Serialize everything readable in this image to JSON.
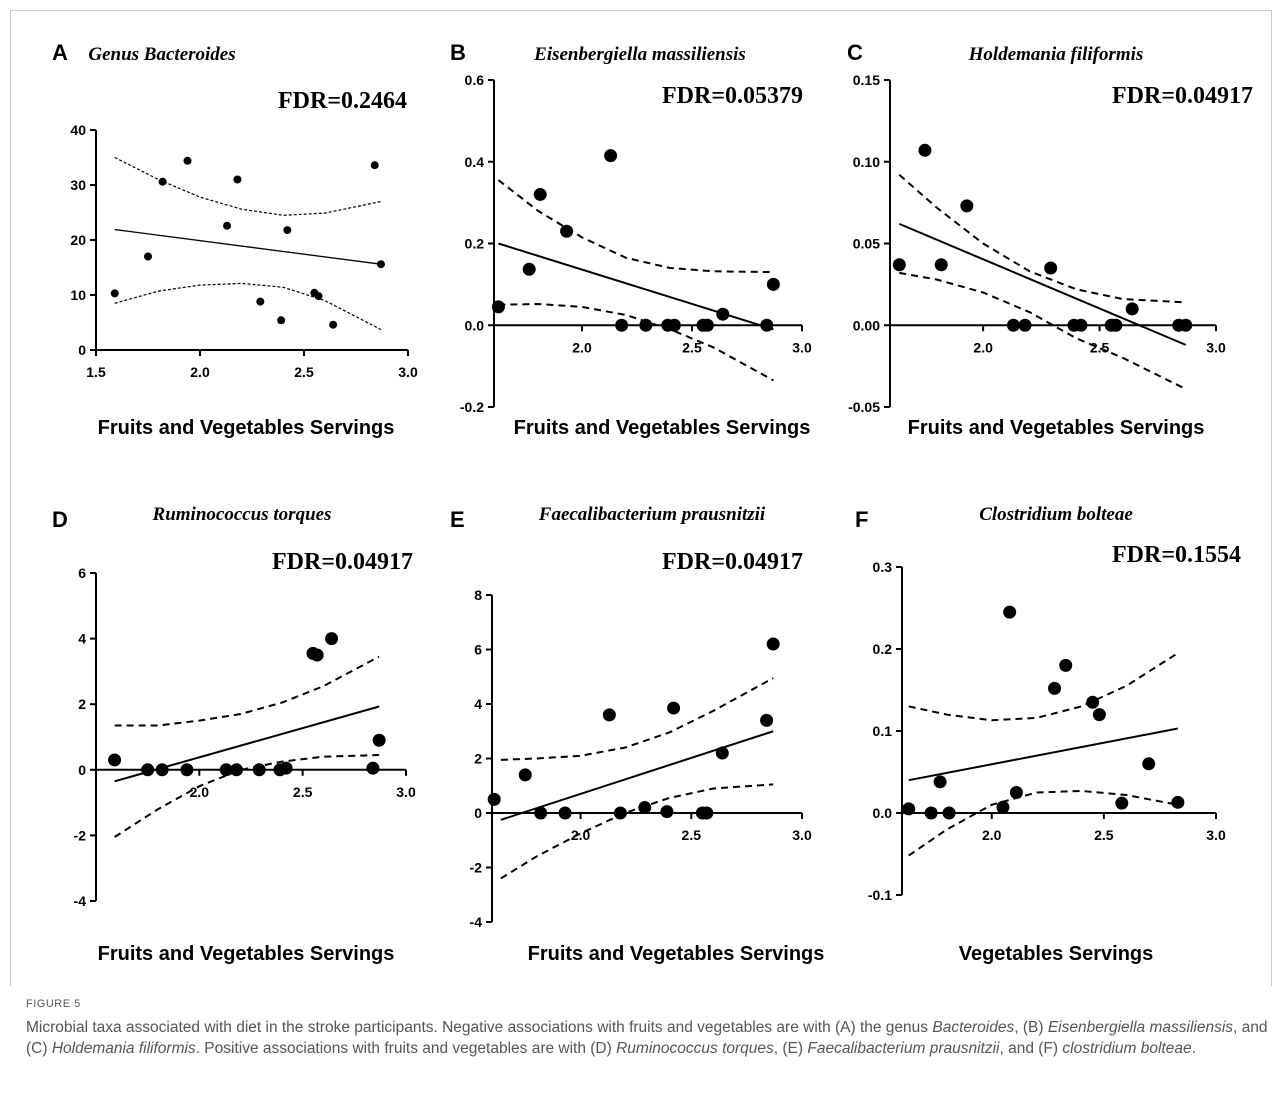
{
  "figure": {
    "label": "FIGURE 5",
    "caption_parts": [
      {
        "t": "Microbial taxa associated with diet in the stroke participants. Negative associations with fruits and vegetables are with (A) the genus ",
        "i": false
      },
      {
        "t": "Bacteroides",
        "i": true
      },
      {
        "t": ", (B) ",
        "i": false
      },
      {
        "t": "Eisenbergiella massiliensis",
        "i": true
      },
      {
        "t": ", and (C) ",
        "i": false
      },
      {
        "t": "Holdemania filiformis",
        "i": true
      },
      {
        "t": ". Positive associations with fruits and vegetables are with (D) ",
        "i": false
      },
      {
        "t": "Ruminococcus torques",
        "i": true
      },
      {
        "t": ", (E) ",
        "i": false
      },
      {
        "t": "Faecalibacterium prausnitzii",
        "i": true
      },
      {
        "t": ", and (F) ",
        "i": false
      },
      {
        "t": "clostridium bolteae",
        "i": true
      },
      {
        "t": ".",
        "i": false
      }
    ]
  },
  "chart_data": [
    {
      "panel": "A",
      "type": "scatter",
      "title": "Genus Bacteroides",
      "fdr": "FDR=0.2464",
      "xlabel": "Fruits and Vegetables Servings",
      "ylabel": "",
      "xlim": [
        1.5,
        3.0
      ],
      "ylim": [
        0,
        40
      ],
      "xticks": [
        "1.5",
        "2.0",
        "2.5",
        "3.0"
      ],
      "yticks": [
        "0",
        "10",
        "20",
        "30",
        "40"
      ],
      "axis_style": "box",
      "point_size": "small",
      "band_style": "dotted",
      "points": [
        [
          1.59,
          10.3
        ],
        [
          1.75,
          17.0
        ],
        [
          1.82,
          30.6
        ],
        [
          1.94,
          34.4
        ],
        [
          2.13,
          22.6
        ],
        [
          2.18,
          31.0
        ],
        [
          2.29,
          8.8
        ],
        [
          2.39,
          5.4
        ],
        [
          2.42,
          21.8
        ],
        [
          2.55,
          10.4
        ],
        [
          2.57,
          9.8
        ],
        [
          2.64,
          4.6
        ],
        [
          2.84,
          33.6
        ],
        [
          2.87,
          15.6
        ]
      ],
      "fit": [
        [
          1.59,
          21.9
        ],
        [
          2.87,
          15.6
        ]
      ],
      "upper": [
        [
          1.59,
          35.0
        ],
        [
          1.8,
          31.0
        ],
        [
          2.0,
          27.8
        ],
        [
          2.2,
          25.6
        ],
        [
          2.4,
          24.5
        ],
        [
          2.6,
          24.9
        ],
        [
          2.87,
          27.0
        ]
      ],
      "lower": [
        [
          1.59,
          8.5
        ],
        [
          1.8,
          10.7
        ],
        [
          2.0,
          11.8
        ],
        [
          2.2,
          12.1
        ],
        [
          2.4,
          11.4
        ],
        [
          2.6,
          9.0
        ],
        [
          2.87,
          3.7
        ]
      ]
    },
    {
      "panel": "B",
      "type": "scatter",
      "title": "Eisenbergiella massiliensis",
      "fdr": "FDR=0.05379",
      "xlabel": "Fruits and Vegetables Servings",
      "ylabel": "",
      "xlim": [
        1.6,
        3.0
      ],
      "ylim": [
        -0.2,
        0.6
      ],
      "xticks": [
        "2.0",
        "2.5",
        "3.0"
      ],
      "yticks": [
        "-0.2",
        "0.0",
        "0.2",
        "0.4",
        "0.6"
      ],
      "axis_style": "zero",
      "point_size": "large",
      "band_style": "dashed",
      "points": [
        [
          1.62,
          0.045
        ],
        [
          1.76,
          0.137
        ],
        [
          1.81,
          0.32
        ],
        [
          1.93,
          0.23
        ],
        [
          2.13,
          0.415
        ],
        [
          2.18,
          0.0
        ],
        [
          2.29,
          0.0
        ],
        [
          2.39,
          0.0
        ],
        [
          2.42,
          0.0
        ],
        [
          2.55,
          0.0
        ],
        [
          2.57,
          0.0
        ],
        [
          2.64,
          0.027
        ],
        [
          2.84,
          0.0
        ],
        [
          2.87,
          0.1
        ]
      ],
      "fit": [
        [
          1.62,
          0.2
        ],
        [
          2.87,
          -0.01
        ]
      ],
      "upper": [
        [
          1.62,
          0.355
        ],
        [
          1.8,
          0.28
        ],
        [
          2.0,
          0.215
        ],
        [
          2.2,
          0.165
        ],
        [
          2.4,
          0.14
        ],
        [
          2.6,
          0.132
        ],
        [
          2.87,
          0.13
        ]
      ],
      "lower": [
        [
          1.62,
          0.05
        ],
        [
          1.8,
          0.052
        ],
        [
          2.0,
          0.045
        ],
        [
          2.2,
          0.025
        ],
        [
          2.4,
          -0.01
        ],
        [
          2.6,
          -0.055
        ],
        [
          2.87,
          -0.135
        ]
      ]
    },
    {
      "panel": "C",
      "type": "scatter",
      "title": "Holdemania filiformis",
      "fdr": "FDR=0.04917",
      "xlabel": "Fruits and Vegetables Servings",
      "ylabel": "",
      "xlim": [
        1.6,
        3.0
      ],
      "ylim": [
        -0.05,
        0.15
      ],
      "xticks": [
        "2.0",
        "2.5",
        "3.0"
      ],
      "yticks": [
        "-0.05",
        "0.00",
        "0.05",
        "0.10",
        "0.15"
      ],
      "axis_style": "zero",
      "point_size": "large",
      "band_style": "dashed",
      "points": [
        [
          1.64,
          0.037
        ],
        [
          1.75,
          0.107
        ],
        [
          1.82,
          0.037
        ],
        [
          1.93,
          0.073
        ],
        [
          2.13,
          0.0
        ],
        [
          2.18,
          0.0
        ],
        [
          2.29,
          0.035
        ],
        [
          2.39,
          0.0
        ],
        [
          2.42,
          0.0
        ],
        [
          2.55,
          0.0
        ],
        [
          2.57,
          0.0
        ],
        [
          2.64,
          0.01
        ],
        [
          2.84,
          0.0
        ],
        [
          2.87,
          0.0
        ]
      ],
      "fit": [
        [
          1.64,
          0.062
        ],
        [
          2.87,
          -0.012
        ]
      ],
      "upper": [
        [
          1.64,
          0.092
        ],
        [
          1.8,
          0.072
        ],
        [
          2.0,
          0.05
        ],
        [
          2.2,
          0.033
        ],
        [
          2.4,
          0.022
        ],
        [
          2.6,
          0.016
        ],
        [
          2.87,
          0.014
        ]
      ],
      "lower": [
        [
          1.64,
          0.032
        ],
        [
          1.8,
          0.028
        ],
        [
          2.0,
          0.02
        ],
        [
          2.2,
          0.008
        ],
        [
          2.4,
          -0.008
        ],
        [
          2.6,
          -0.02
        ],
        [
          2.87,
          -0.039
        ]
      ]
    },
    {
      "panel": "D",
      "type": "scatter",
      "title": "Ruminococcus torques",
      "fdr": "FDR=0.04917",
      "xlabel": "Fruits and Vegetables Servings",
      "ylabel": "",
      "xlim": [
        1.5,
        3.0
      ],
      "ylim": [
        -4,
        6
      ],
      "xticks": [
        "2.0",
        "2.5",
        "3.0"
      ],
      "yticks": [
        "-4",
        "-2",
        "0",
        "2",
        "4",
        "6"
      ],
      "axis_style": "zero",
      "point_size": "large",
      "band_style": "dashed",
      "points": [
        [
          1.59,
          0.3
        ],
        [
          1.75,
          0.0
        ],
        [
          1.82,
          0.0
        ],
        [
          1.94,
          0.0
        ],
        [
          2.13,
          0.0
        ],
        [
          2.18,
          0.0
        ],
        [
          2.29,
          0.0
        ],
        [
          2.39,
          0.0
        ],
        [
          2.42,
          0.05
        ],
        [
          2.55,
          3.55
        ],
        [
          2.57,
          3.5
        ],
        [
          2.64,
          4.0
        ],
        [
          2.84,
          0.05
        ],
        [
          2.87,
          0.9
        ]
      ],
      "fit": [
        [
          1.59,
          -0.35
        ],
        [
          2.87,
          1.93
        ]
      ],
      "upper": [
        [
          1.59,
          1.35
        ],
        [
          1.8,
          1.35
        ],
        [
          2.0,
          1.5
        ],
        [
          2.2,
          1.7
        ],
        [
          2.4,
          2.05
        ],
        [
          2.6,
          2.55
        ],
        [
          2.87,
          3.45
        ]
      ],
      "lower": [
        [
          1.59,
          -2.05
        ],
        [
          1.8,
          -1.2
        ],
        [
          2.0,
          -0.5
        ],
        [
          2.2,
          0.0
        ],
        [
          2.4,
          0.25
        ],
        [
          2.6,
          0.4
        ],
        [
          2.87,
          0.45
        ]
      ]
    },
    {
      "panel": "E",
      "type": "scatter",
      "title": "Faecalibacterium prausnitzii",
      "fdr": "FDR=0.04917",
      "xlabel": "Fruits and Vegetables Servings",
      "ylabel": "",
      "xlim": [
        1.6,
        3.0
      ],
      "ylim": [
        -4,
        8
      ],
      "xticks": [
        "2.0",
        "2.5",
        "3.0"
      ],
      "yticks": [
        "-4",
        "-2",
        "0",
        "2",
        "4",
        "6",
        "8"
      ],
      "axis_style": "zero",
      "point_size": "large",
      "band_style": "dashed",
      "points": [
        [
          1.61,
          0.5
        ],
        [
          1.75,
          1.4
        ],
        [
          1.82,
          0.0
        ],
        [
          1.93,
          0.0
        ],
        [
          2.13,
          3.6
        ],
        [
          2.18,
          0.0
        ],
        [
          2.29,
          0.2
        ],
        [
          2.39,
          0.05
        ],
        [
          2.42,
          3.85
        ],
        [
          2.55,
          0.0
        ],
        [
          2.57,
          0.0
        ],
        [
          2.64,
          2.2
        ],
        [
          2.84,
          3.4
        ],
        [
          2.87,
          6.2
        ]
      ],
      "fit": [
        [
          1.64,
          -0.25
        ],
        [
          2.87,
          3.0
        ]
      ],
      "upper": [
        [
          1.64,
          1.95
        ],
        [
          1.8,
          2.0
        ],
        [
          2.0,
          2.1
        ],
        [
          2.2,
          2.4
        ],
        [
          2.4,
          2.95
        ],
        [
          2.6,
          3.75
        ],
        [
          2.87,
          4.95
        ]
      ],
      "lower": [
        [
          1.64,
          -2.4
        ],
        [
          1.8,
          -1.6
        ],
        [
          2.0,
          -0.75
        ],
        [
          2.2,
          0.0
        ],
        [
          2.4,
          0.55
        ],
        [
          2.6,
          0.9
        ],
        [
          2.87,
          1.05
        ]
      ]
    },
    {
      "panel": "F",
      "type": "scatter",
      "title": "Clostridium bolteae",
      "fdr": "FDR=0.1554",
      "xlabel": "Vegetables Servings",
      "ylabel": "",
      "xlim": [
        1.6,
        3.0
      ],
      "ylim": [
        -0.1,
        0.3
      ],
      "xticks": [
        "2.0",
        "2.5",
        "3.0"
      ],
      "yticks": [
        "-0.1",
        "0.0",
        "0.1",
        "0.2",
        "0.3"
      ],
      "axis_style": "zero",
      "point_size": "large",
      "band_style": "dashed",
      "points": [
        [
          1.63,
          0.005
        ],
        [
          1.73,
          0.0
        ],
        [
          1.77,
          0.038
        ],
        [
          1.81,
          0.0
        ],
        [
          2.05,
          0.007
        ],
        [
          2.08,
          0.245
        ],
        [
          2.11,
          0.025
        ],
        [
          2.28,
          0.152
        ],
        [
          2.33,
          0.18
        ],
        [
          2.45,
          0.135
        ],
        [
          2.48,
          0.12
        ],
        [
          2.58,
          0.012
        ],
        [
          2.7,
          0.06
        ],
        [
          2.83,
          0.013
        ]
      ],
      "fit": [
        [
          1.63,
          0.04
        ],
        [
          2.83,
          0.103
        ]
      ],
      "upper": [
        [
          1.63,
          0.13
        ],
        [
          1.8,
          0.12
        ],
        [
          2.0,
          0.113
        ],
        [
          2.2,
          0.116
        ],
        [
          2.4,
          0.13
        ],
        [
          2.6,
          0.155
        ],
        [
          2.83,
          0.195
        ]
      ],
      "lower": [
        [
          1.63,
          -0.052
        ],
        [
          1.8,
          -0.02
        ],
        [
          2.0,
          0.01
        ],
        [
          2.2,
          0.025
        ],
        [
          2.4,
          0.027
        ],
        [
          2.6,
          0.022
        ],
        [
          2.83,
          0.01
        ]
      ]
    }
  ]
}
